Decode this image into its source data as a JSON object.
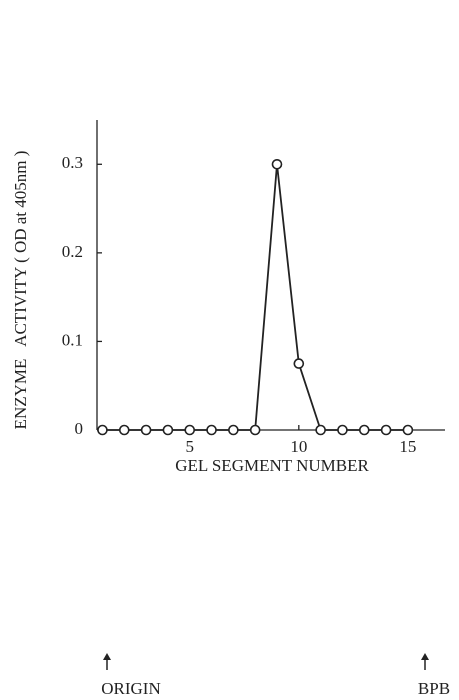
{
  "chart_data": {
    "type": "line",
    "x_label": "GEL SEGMENT NUMBER",
    "y_label": "ENZYME   ACTIVITY ( OD at 405nm )",
    "x": [
      1,
      2,
      3,
      4,
      5,
      6,
      7,
      8,
      9,
      10,
      11,
      12,
      13,
      14,
      15
    ],
    "series": [
      {
        "color": "#222222",
        "values": [
          0,
          0,
          0,
          0,
          0,
          0,
          0,
          0,
          0.3,
          0.075,
          0,
          0,
          0,
          0,
          0
        ]
      }
    ],
    "xlim": [
      0.75,
      16.7
    ],
    "xticks": [
      5,
      10,
      15
    ],
    "ylim": [
      0,
      0.35
    ],
    "yticks": [
      0,
      0.1,
      0.2,
      0.3
    ],
    "annotations": [
      "ORIGIN",
      "BPB"
    ]
  }
}
